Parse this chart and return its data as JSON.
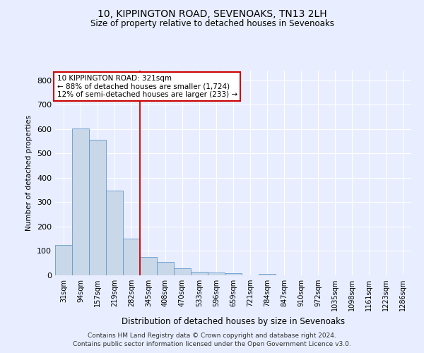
{
  "title": "10, KIPPINGTON ROAD, SEVENOAKS, TN13 2LH",
  "subtitle": "Size of property relative to detached houses in Sevenoaks",
  "xlabel": "Distribution of detached houses by size in Sevenoaks",
  "ylabel": "Number of detached properties",
  "categories": [
    "31sqm",
    "94sqm",
    "157sqm",
    "219sqm",
    "282sqm",
    "345sqm",
    "408sqm",
    "470sqm",
    "533sqm",
    "596sqm",
    "659sqm",
    "721sqm",
    "784sqm",
    "847sqm",
    "910sqm",
    "972sqm",
    "1035sqm",
    "1098sqm",
    "1161sqm",
    "1223sqm",
    "1286sqm"
  ],
  "values": [
    125,
    602,
    555,
    347,
    150,
    76,
    55,
    30,
    15,
    12,
    8,
    0,
    7,
    0,
    0,
    0,
    0,
    0,
    0,
    0,
    0
  ],
  "bar_color": "#c8d8e8",
  "bar_edge_color": "#6699cc",
  "vline_x": 4.5,
  "vline_color": "#cc0000",
  "annotation_title": "10 KIPPINGTON ROAD: 321sqm",
  "annotation_line1": "← 88% of detached houses are smaller (1,724)",
  "annotation_line2": "12% of semi-detached houses are larger (233) →",
  "annotation_box_color": "#ffffff",
  "annotation_box_edge": "#cc0000",
  "ylim": [
    0,
    840
  ],
  "background_color": "#e8eeff",
  "grid_color": "#ffffff",
  "footer1": "Contains HM Land Registry data © Crown copyright and database right 2024.",
  "footer2": "Contains public sector information licensed under the Open Government Licence v3.0."
}
